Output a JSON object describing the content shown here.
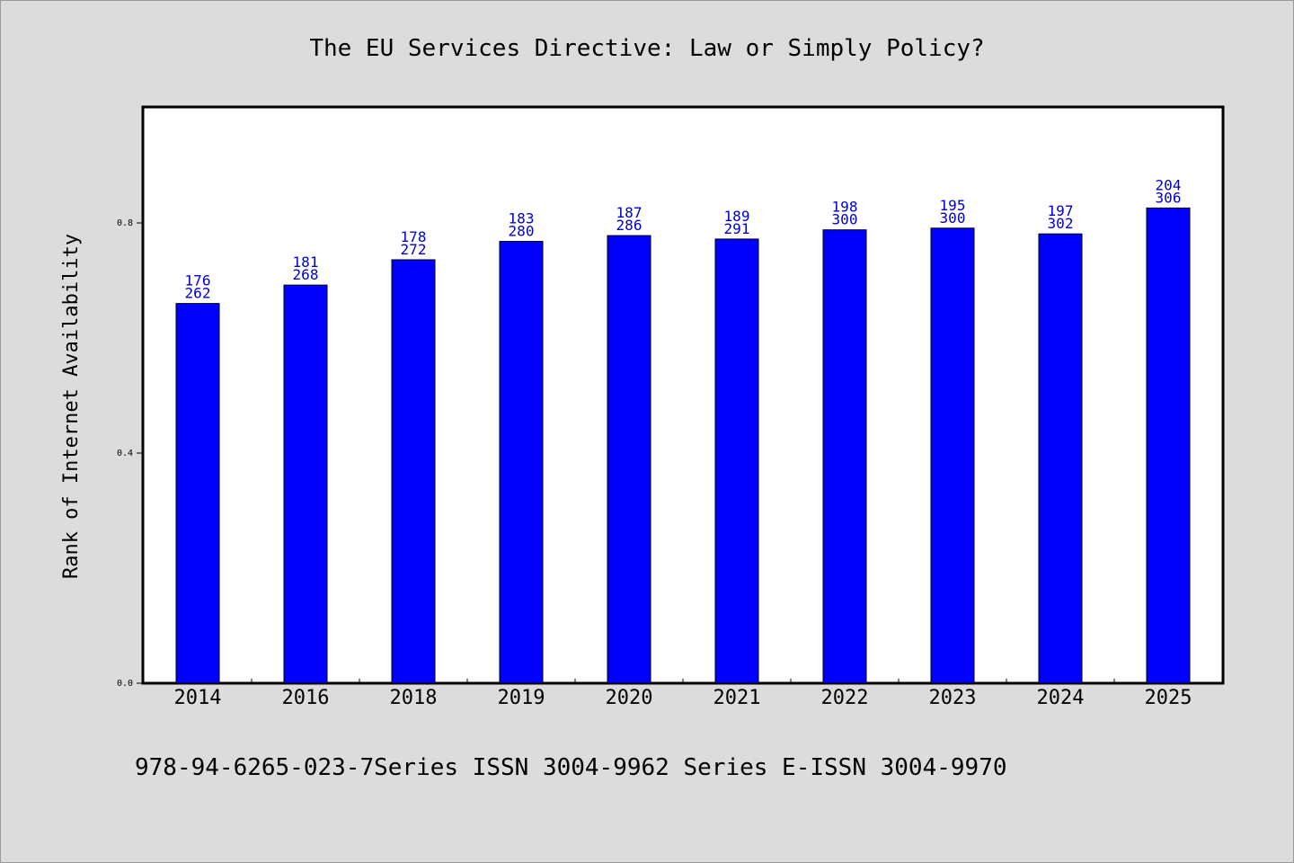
{
  "chart_data": {
    "type": "bar",
    "title": "The EU Services Directive: Law or Simply Policy?",
    "xlabel": "",
    "ylabel": "Rank of Internet Availability",
    "ylim": [
      0,
      1
    ],
    "y_ticks": [
      "0.0",
      "0.4",
      "0.8"
    ],
    "grid": false,
    "categories": [
      "2014",
      "2016",
      "2018",
      "2019",
      "2020",
      "2021",
      "2022",
      "2023",
      "2024",
      "2025"
    ],
    "values": [
      0.66,
      0.692,
      0.736,
      0.768,
      0.778,
      0.772,
      0.788,
      0.791,
      0.781,
      0.826
    ],
    "label_top": [
      "176",
      "181",
      "178",
      "183",
      "187",
      "189",
      "198",
      "195",
      "197",
      "204"
    ],
    "label_bottom": [
      "262",
      "268",
      "272",
      "280",
      "286",
      "291",
      "300",
      "300",
      "302",
      "306"
    ],
    "bar_color": "#0000ff",
    "label_color": "#0000cc"
  },
  "footer": "978-94-6265-023-7Series ISSN 3004-9962 Series E-ISSN 3004-9970"
}
